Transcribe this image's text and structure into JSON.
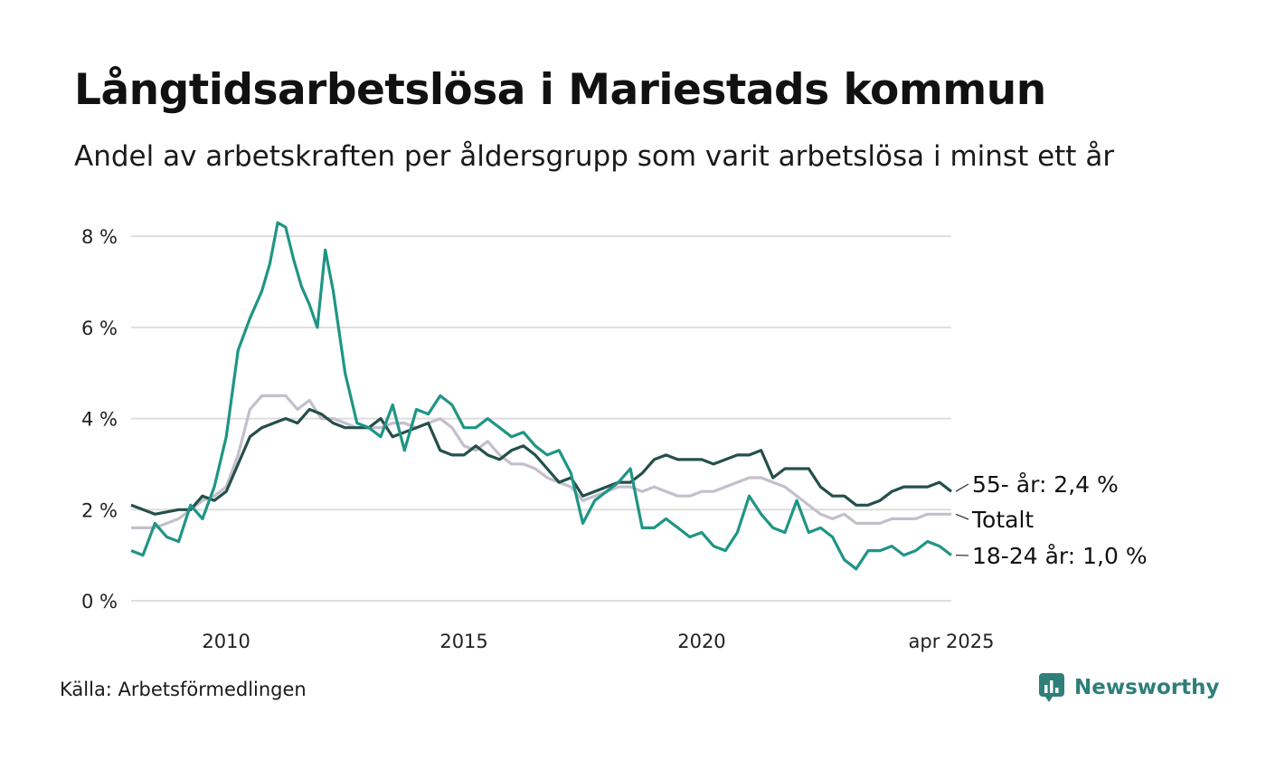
{
  "title": "Långtidsarbetslösa i Mariestads kommun",
  "subtitle": "Andel av arbetskraften per åldersgrupp som varit arbetslösa i minst ett år",
  "source": "Källa: Arbetsförmedlingen",
  "brand": {
    "name": "Newsworthy",
    "icon": "bar-chart-logo-icon",
    "color": "#2e7f78"
  },
  "chart_data": {
    "type": "line",
    "y_unit": "%",
    "ylim": [
      0,
      8.5
    ],
    "y_ticks": [
      {
        "value": 0,
        "label": "0 %"
      },
      {
        "value": 2,
        "label": "2 %"
      },
      {
        "value": 4,
        "label": "4 %"
      },
      {
        "value": 6,
        "label": "6 %"
      },
      {
        "value": 8,
        "label": "8 %"
      }
    ],
    "x_range": [
      "2008-01",
      "2025-04"
    ],
    "x_ticks": [
      {
        "value": "2010-01",
        "label": "2010"
      },
      {
        "value": "2015-01",
        "label": "2015"
      },
      {
        "value": "2020-01",
        "label": "2020"
      },
      {
        "value": "2025-04",
        "label": "apr 2025"
      }
    ],
    "grid": true,
    "legend": "end-of-line labels",
    "series": [
      {
        "name": "Totalt",
        "label": "Totalt",
        "color": "#c4bfcb",
        "points": [
          [
            "2008-01",
            1.6
          ],
          [
            "2008-07",
            1.6
          ],
          [
            "2009-01",
            1.8
          ],
          [
            "2009-04",
            2.0
          ],
          [
            "2009-07",
            2.2
          ],
          [
            "2009-10",
            2.3
          ],
          [
            "2010-01",
            2.5
          ],
          [
            "2010-04",
            3.2
          ],
          [
            "2010-07",
            4.2
          ],
          [
            "2010-10",
            4.5
          ],
          [
            "2011-01",
            4.5
          ],
          [
            "2011-04",
            4.5
          ],
          [
            "2011-07",
            4.2
          ],
          [
            "2011-10",
            4.4
          ],
          [
            "2012-01",
            4.0
          ],
          [
            "2012-04",
            4.0
          ],
          [
            "2012-07",
            3.9
          ],
          [
            "2012-10",
            3.8
          ],
          [
            "2013-01",
            3.8
          ],
          [
            "2013-04",
            3.8
          ],
          [
            "2013-07",
            3.9
          ],
          [
            "2013-10",
            3.9
          ],
          [
            "2014-01",
            3.8
          ],
          [
            "2014-04",
            3.9
          ],
          [
            "2014-07",
            4.0
          ],
          [
            "2014-10",
            3.8
          ],
          [
            "2015-01",
            3.4
          ],
          [
            "2015-04",
            3.3
          ],
          [
            "2015-07",
            3.5
          ],
          [
            "2015-10",
            3.2
          ],
          [
            "2016-01",
            3.0
          ],
          [
            "2016-04",
            3.0
          ],
          [
            "2016-07",
            2.9
          ],
          [
            "2016-10",
            2.7
          ],
          [
            "2017-01",
            2.6
          ],
          [
            "2017-04",
            2.5
          ],
          [
            "2017-07",
            2.2
          ],
          [
            "2017-10",
            2.3
          ],
          [
            "2018-01",
            2.4
          ],
          [
            "2018-04",
            2.5
          ],
          [
            "2018-07",
            2.5
          ],
          [
            "2018-10",
            2.4
          ],
          [
            "2019-01",
            2.5
          ],
          [
            "2019-04",
            2.4
          ],
          [
            "2019-07",
            2.3
          ],
          [
            "2019-10",
            2.3
          ],
          [
            "2020-01",
            2.4
          ],
          [
            "2020-04",
            2.4
          ],
          [
            "2020-07",
            2.5
          ],
          [
            "2020-10",
            2.6
          ],
          [
            "2021-01",
            2.7
          ],
          [
            "2021-04",
            2.7
          ],
          [
            "2021-07",
            2.6
          ],
          [
            "2021-10",
            2.5
          ],
          [
            "2022-01",
            2.3
          ],
          [
            "2022-04",
            2.1
          ],
          [
            "2022-07",
            1.9
          ],
          [
            "2022-10",
            1.8
          ],
          [
            "2023-01",
            1.9
          ],
          [
            "2023-04",
            1.7
          ],
          [
            "2023-07",
            1.7
          ],
          [
            "2023-10",
            1.7
          ],
          [
            "2024-01",
            1.8
          ],
          [
            "2024-04",
            1.8
          ],
          [
            "2024-07",
            1.8
          ],
          [
            "2024-10",
            1.9
          ],
          [
            "2025-01",
            1.9
          ],
          [
            "2025-04",
            1.9
          ]
        ]
      },
      {
        "name": "55- år",
        "label": "55- år: 2,4 %",
        "color": "#24504a",
        "points": [
          [
            "2008-01",
            2.1
          ],
          [
            "2008-07",
            1.9
          ],
          [
            "2009-01",
            2.0
          ],
          [
            "2009-04",
            2.0
          ],
          [
            "2009-07",
            2.3
          ],
          [
            "2009-10",
            2.2
          ],
          [
            "2010-01",
            2.4
          ],
          [
            "2010-04",
            3.0
          ],
          [
            "2010-07",
            3.6
          ],
          [
            "2010-10",
            3.8
          ],
          [
            "2011-01",
            3.9
          ],
          [
            "2011-04",
            4.0
          ],
          [
            "2011-07",
            3.9
          ],
          [
            "2011-10",
            4.2
          ],
          [
            "2012-01",
            4.1
          ],
          [
            "2012-04",
            3.9
          ],
          [
            "2012-07",
            3.8
          ],
          [
            "2012-10",
            3.8
          ],
          [
            "2013-01",
            3.8
          ],
          [
            "2013-04",
            4.0
          ],
          [
            "2013-07",
            3.6
          ],
          [
            "2013-10",
            3.7
          ],
          [
            "2014-01",
            3.8
          ],
          [
            "2014-04",
            3.9
          ],
          [
            "2014-07",
            3.3
          ],
          [
            "2014-10",
            3.2
          ],
          [
            "2015-01",
            3.2
          ],
          [
            "2015-04",
            3.4
          ],
          [
            "2015-07",
            3.2
          ],
          [
            "2015-10",
            3.1
          ],
          [
            "2016-01",
            3.3
          ],
          [
            "2016-04",
            3.4
          ],
          [
            "2016-07",
            3.2
          ],
          [
            "2016-10",
            2.9
          ],
          [
            "2017-01",
            2.6
          ],
          [
            "2017-04",
            2.7
          ],
          [
            "2017-07",
            2.3
          ],
          [
            "2017-10",
            2.4
          ],
          [
            "2018-01",
            2.5
          ],
          [
            "2018-04",
            2.6
          ],
          [
            "2018-07",
            2.6
          ],
          [
            "2018-10",
            2.8
          ],
          [
            "2019-01",
            3.1
          ],
          [
            "2019-04",
            3.2
          ],
          [
            "2019-07",
            3.1
          ],
          [
            "2019-10",
            3.1
          ],
          [
            "2020-01",
            3.1
          ],
          [
            "2020-04",
            3.0
          ],
          [
            "2020-07",
            3.1
          ],
          [
            "2020-10",
            3.2
          ],
          [
            "2021-01",
            3.2
          ],
          [
            "2021-04",
            3.3
          ],
          [
            "2021-07",
            2.7
          ],
          [
            "2021-10",
            2.9
          ],
          [
            "2022-01",
            2.9
          ],
          [
            "2022-04",
            2.9
          ],
          [
            "2022-07",
            2.5
          ],
          [
            "2022-10",
            2.3
          ],
          [
            "2023-01",
            2.3
          ],
          [
            "2023-04",
            2.1
          ],
          [
            "2023-07",
            2.1
          ],
          [
            "2023-10",
            2.2
          ],
          [
            "2024-01",
            2.4
          ],
          [
            "2024-04",
            2.5
          ],
          [
            "2024-07",
            2.5
          ],
          [
            "2024-10",
            2.5
          ],
          [
            "2025-01",
            2.6
          ],
          [
            "2025-04",
            2.4
          ]
        ]
      },
      {
        "name": "18-24 år",
        "label": "18-24 år: 1,0 %",
        "color": "#1f9585",
        "points": [
          [
            "2008-01",
            1.1
          ],
          [
            "2008-04",
            1.0
          ],
          [
            "2008-07",
            1.7
          ],
          [
            "2008-10",
            1.4
          ],
          [
            "2009-01",
            1.3
          ],
          [
            "2009-04",
            2.1
          ],
          [
            "2009-07",
            1.8
          ],
          [
            "2009-10",
            2.5
          ],
          [
            "2010-01",
            3.6
          ],
          [
            "2010-04",
            5.5
          ],
          [
            "2010-07",
            6.2
          ],
          [
            "2010-10",
            6.8
          ],
          [
            "2010-12",
            7.4
          ],
          [
            "2011-02",
            8.3
          ],
          [
            "2011-04",
            8.2
          ],
          [
            "2011-06",
            7.5
          ],
          [
            "2011-08",
            6.9
          ],
          [
            "2011-10",
            6.5
          ],
          [
            "2011-12",
            6.0
          ],
          [
            "2012-02",
            7.7
          ],
          [
            "2012-04",
            6.8
          ],
          [
            "2012-07",
            5.0
          ],
          [
            "2012-10",
            3.9
          ],
          [
            "2013-01",
            3.8
          ],
          [
            "2013-04",
            3.6
          ],
          [
            "2013-07",
            4.3
          ],
          [
            "2013-10",
            3.3
          ],
          [
            "2014-01",
            4.2
          ],
          [
            "2014-04",
            4.1
          ],
          [
            "2014-07",
            4.5
          ],
          [
            "2014-10",
            4.3
          ],
          [
            "2015-01",
            3.8
          ],
          [
            "2015-04",
            3.8
          ],
          [
            "2015-07",
            4.0
          ],
          [
            "2015-10",
            3.8
          ],
          [
            "2016-01",
            3.6
          ],
          [
            "2016-04",
            3.7
          ],
          [
            "2016-07",
            3.4
          ],
          [
            "2016-10",
            3.2
          ],
          [
            "2017-01",
            3.3
          ],
          [
            "2017-04",
            2.8
          ],
          [
            "2017-07",
            1.7
          ],
          [
            "2017-10",
            2.2
          ],
          [
            "2018-01",
            2.4
          ],
          [
            "2018-04",
            2.6
          ],
          [
            "2018-07",
            2.9
          ],
          [
            "2018-10",
            1.6
          ],
          [
            "2019-01",
            1.6
          ],
          [
            "2019-04",
            1.8
          ],
          [
            "2019-07",
            1.6
          ],
          [
            "2019-10",
            1.4
          ],
          [
            "2020-01",
            1.5
          ],
          [
            "2020-04",
            1.2
          ],
          [
            "2020-07",
            1.1
          ],
          [
            "2020-10",
            1.5
          ],
          [
            "2021-01",
            2.3
          ],
          [
            "2021-04",
            1.9
          ],
          [
            "2021-07",
            1.6
          ],
          [
            "2021-10",
            1.5
          ],
          [
            "2022-01",
            2.2
          ],
          [
            "2022-04",
            1.5
          ],
          [
            "2022-07",
            1.6
          ],
          [
            "2022-10",
            1.4
          ],
          [
            "2023-01",
            0.9
          ],
          [
            "2023-04",
            0.7
          ],
          [
            "2023-07",
            1.1
          ],
          [
            "2023-10",
            1.1
          ],
          [
            "2024-01",
            1.2
          ],
          [
            "2024-04",
            1.0
          ],
          [
            "2024-07",
            1.1
          ],
          [
            "2024-10",
            1.3
          ],
          [
            "2025-01",
            1.2
          ],
          [
            "2025-04",
            1.0
          ]
        ]
      }
    ]
  }
}
